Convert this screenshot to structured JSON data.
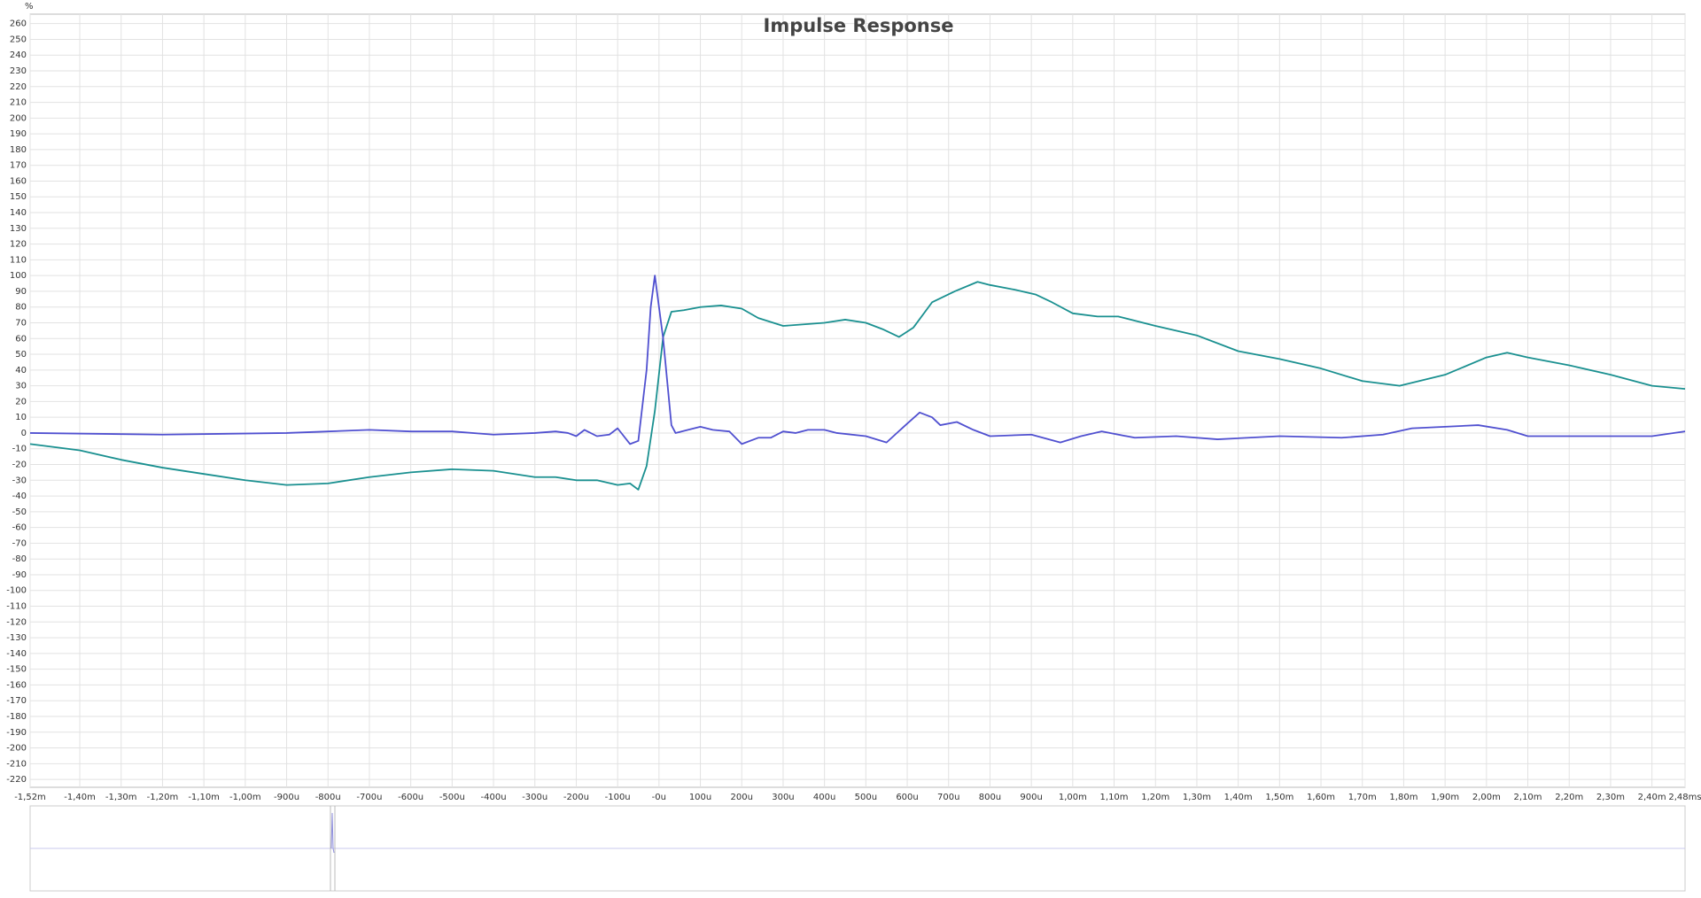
{
  "chart_data": {
    "type": "line",
    "title": "Impulse Response",
    "y_label": "%",
    "xlim": [
      -1.52,
      2.48
    ],
    "ylim": [
      -225,
      266
    ],
    "grid": true,
    "xticks": [
      {
        "value": -1.52,
        "label": "-1,52m"
      },
      {
        "value": -1.4,
        "label": "-1,40m"
      },
      {
        "value": -1.3,
        "label": "-1,30m"
      },
      {
        "value": -1.2,
        "label": "-1,20m"
      },
      {
        "value": -1.1,
        "label": "-1,10m"
      },
      {
        "value": -1.0,
        "label": "-1,00m"
      },
      {
        "value": -0.9,
        "label": "-900u"
      },
      {
        "value": -0.8,
        "label": "-800u"
      },
      {
        "value": -0.7,
        "label": "-700u"
      },
      {
        "value": -0.6,
        "label": "-600u"
      },
      {
        "value": -0.5,
        "label": "-500u"
      },
      {
        "value": -0.4,
        "label": "-400u"
      },
      {
        "value": -0.3,
        "label": "-300u"
      },
      {
        "value": -0.2,
        "label": "-200u"
      },
      {
        "value": -0.1,
        "label": "-100u"
      },
      {
        "value": 0,
        "label": "-0u"
      },
      {
        "value": 0.1,
        "label": "100u"
      },
      {
        "value": 0.2,
        "label": "200u"
      },
      {
        "value": 0.3,
        "label": "300u"
      },
      {
        "value": 0.4,
        "label": "400u"
      },
      {
        "value": 0.5,
        "label": "500u"
      },
      {
        "value": 0.6,
        "label": "600u"
      },
      {
        "value": 0.7,
        "label": "700u"
      },
      {
        "value": 0.8,
        "label": "800u"
      },
      {
        "value": 0.9,
        "label": "900u"
      },
      {
        "value": 1.0,
        "label": "1,00m"
      },
      {
        "value": 1.1,
        "label": "1,10m"
      },
      {
        "value": 1.2,
        "label": "1,20m"
      },
      {
        "value": 1.3,
        "label": "1,30m"
      },
      {
        "value": 1.4,
        "label": "1,40m"
      },
      {
        "value": 1.5,
        "label": "1,50m"
      },
      {
        "value": 1.6,
        "label": "1,60m"
      },
      {
        "value": 1.7,
        "label": "1,70m"
      },
      {
        "value": 1.8,
        "label": "1,80m"
      },
      {
        "value": 1.9,
        "label": "1,90m"
      },
      {
        "value": 2.0,
        "label": "2,00m"
      },
      {
        "value": 2.1,
        "label": "2,10m"
      },
      {
        "value": 2.2,
        "label": "2,20m"
      },
      {
        "value": 2.3,
        "label": "2,30m"
      },
      {
        "value": 2.4,
        "label": "2,40m"
      },
      {
        "value": 2.48,
        "label": "2,48ms"
      }
    ],
    "yticks": [
      260,
      250,
      240,
      230,
      220,
      210,
      200,
      190,
      180,
      170,
      160,
      150,
      140,
      130,
      120,
      110,
      100,
      90,
      80,
      70,
      60,
      50,
      40,
      30,
      20,
      10,
      0,
      -10,
      -20,
      -30,
      -40,
      -50,
      -60,
      -70,
      -80,
      -90,
      -100,
      -110,
      -120,
      -130,
      -140,
      -150,
      -160,
      -170,
      -180,
      -190,
      -200,
      -210,
      -220
    ],
    "series": [
      {
        "color": "#1a9090",
        "x": [
          -1.52,
          -1.4,
          -1.3,
          -1.2,
          -1.1,
          -1.0,
          -0.9,
          -0.8,
          -0.7,
          -0.6,
          -0.5,
          -0.4,
          -0.3,
          -0.25,
          -0.2,
          -0.15,
          -0.1,
          -0.07,
          -0.05,
          -0.03,
          -0.01,
          0.01,
          0.03,
          0.06,
          0.1,
          0.15,
          0.2,
          0.24,
          0.3,
          0.35,
          0.4,
          0.45,
          0.5,
          0.54,
          0.58,
          0.615,
          0.66,
          0.715,
          0.77,
          0.8,
          0.86,
          0.91,
          0.95,
          1.0,
          1.06,
          1.11,
          1.2,
          1.3,
          1.4,
          1.5,
          1.6,
          1.7,
          1.79,
          1.9,
          2.0,
          2.05,
          2.1,
          2.2,
          2.3,
          2.4,
          2.48
        ],
        "values": [
          -7,
          -11,
          -17,
          -22,
          -26,
          -30,
          -33,
          -32,
          -28,
          -25,
          -23,
          -24,
          -28,
          -28,
          -30,
          -30,
          -33,
          -32,
          -36,
          -21,
          14,
          61,
          77,
          78,
          80,
          81,
          79,
          73,
          68,
          69,
          70,
          72,
          70,
          66,
          61,
          67,
          83,
          90,
          96,
          94,
          91,
          88,
          83,
          76,
          74,
          74,
          68,
          62,
          52,
          47,
          41,
          33,
          30,
          37,
          48,
          51,
          48,
          43,
          37,
          30,
          28
        ]
      },
      {
        "color": "#5050d0",
        "x": [
          -1.52,
          -1.2,
          -0.9,
          -0.8,
          -0.7,
          -0.6,
          -0.5,
          -0.4,
          -0.3,
          -0.25,
          -0.22,
          -0.2,
          -0.18,
          -0.15,
          -0.12,
          -0.1,
          -0.07,
          -0.05,
          -0.03,
          -0.02,
          -0.01,
          0.01,
          0.03,
          0.04,
          0.07,
          0.1,
          0.13,
          0.17,
          0.2,
          0.24,
          0.27,
          0.3,
          0.33,
          0.36,
          0.4,
          0.43,
          0.5,
          0.55,
          0.6,
          0.63,
          0.66,
          0.68,
          0.72,
          0.76,
          0.8,
          0.9,
          0.97,
          1.02,
          1.07,
          1.15,
          1.25,
          1.35,
          1.5,
          1.65,
          1.75,
          1.82,
          1.9,
          1.98,
          2.05,
          2.1,
          2.3,
          2.4,
          2.48
        ],
        "values": [
          0,
          -1,
          0,
          1,
          2,
          1,
          1,
          -1,
          0,
          1,
          0,
          -2,
          2,
          -2,
          -1,
          3,
          -7,
          -5,
          40,
          80,
          100,
          60,
          5,
          0,
          2,
          4,
          2,
          1,
          -7,
          -3,
          -3,
          1,
          0,
          2,
          2,
          0,
          -2,
          -6,
          6,
          13,
          10,
          5,
          7,
          2,
          -2,
          -1,
          -6,
          -2,
          1,
          -3,
          -2,
          -4,
          -2,
          -3,
          -1,
          3,
          4,
          5,
          2,
          -2,
          -2,
          -2,
          1
        ]
      }
    ]
  }
}
